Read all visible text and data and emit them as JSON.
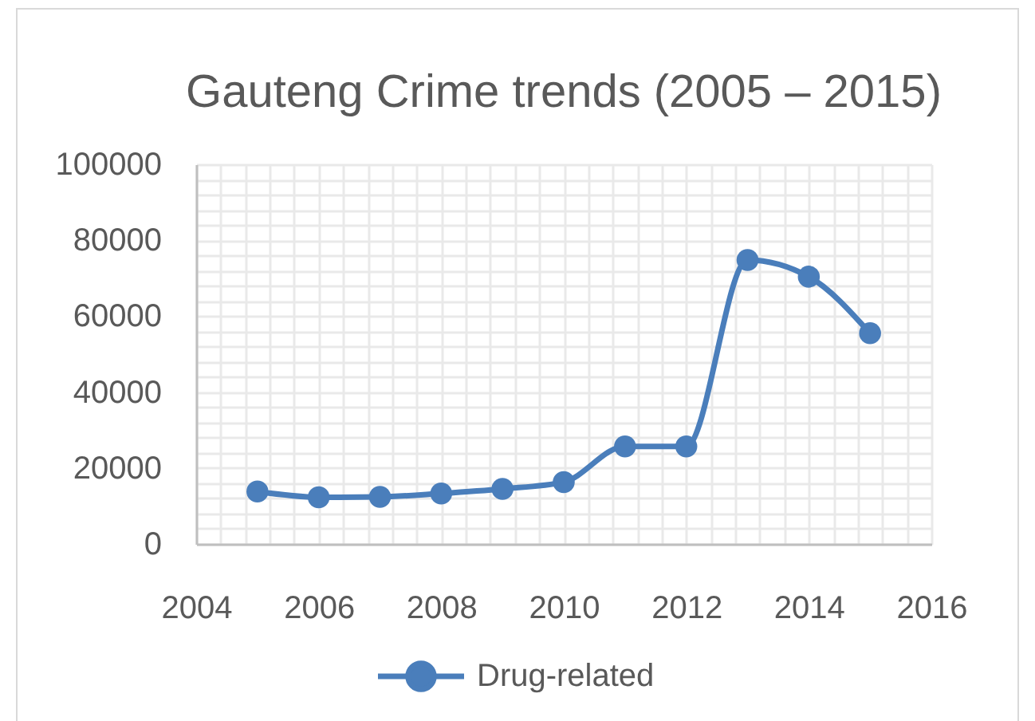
{
  "chart_data": {
    "type": "line",
    "title": "Gauteng Crime trends (2005 – 2015)",
    "x": [
      2005,
      2006,
      2007,
      2008,
      2009,
      2010,
      2011,
      2012,
      2013,
      2014,
      2015
    ],
    "series": [
      {
        "name": "Drug-related",
        "color": "#4a7ebb",
        "values": [
          13800,
          12300,
          12400,
          13300,
          14500,
          16300,
          25700,
          25700,
          74800,
          70400,
          55500
        ]
      }
    ],
    "xlim": [
      2004,
      2016
    ],
    "xticks": [
      2004,
      {
        "value": 2004.4,
        "label": null
      },
      {
        "value": 2004.8,
        "label": null
      },
      {
        "value": 2005.2,
        "label": null
      },
      {
        "value": 2005.6,
        "label": null
      },
      2006,
      {
        "value": 2006.4,
        "label": null
      },
      {
        "value": 2006.8,
        "label": null
      },
      {
        "value": 2007.2,
        "label": null
      },
      {
        "value": 2007.6,
        "label": null
      },
      2008,
      {
        "value": 2008.4,
        "label": null
      },
      {
        "value": 2008.8,
        "label": null
      },
      {
        "value": 2009.2,
        "label": null
      },
      {
        "value": 2009.6,
        "label": null
      },
      2010,
      {
        "value": 2010.4,
        "label": null
      },
      {
        "value": 2010.8,
        "label": null
      },
      {
        "value": 2011.2,
        "label": null
      },
      {
        "value": 2011.6,
        "label": null
      },
      2012,
      {
        "value": 2012.4,
        "label": null
      },
      {
        "value": 2012.8,
        "label": null
      },
      {
        "value": 2013.2,
        "label": null
      },
      {
        "value": 2013.6,
        "label": null
      },
      2014,
      {
        "value": 2014.4,
        "label": null
      },
      {
        "value": 2014.8,
        "label": null
      },
      {
        "value": 2015.2,
        "label": null
      },
      {
        "value": 2015.6,
        "label": null
      },
      2016
    ],
    "ylim": [
      0,
      100000
    ],
    "yticks": [
      0,
      {
        "value": 4000,
        "label": null
      },
      {
        "value": 8000,
        "label": null
      },
      {
        "value": 12000,
        "label": null
      },
      {
        "value": 16000,
        "label": null
      },
      20000,
      {
        "value": 24000,
        "label": null
      },
      {
        "value": 28000,
        "label": null
      },
      {
        "value": 32000,
        "label": null
      },
      {
        "value": 36000,
        "label": null
      },
      40000,
      {
        "value": 44000,
        "label": null
      },
      {
        "value": 48000,
        "label": null
      },
      {
        "value": 52000,
        "label": null
      },
      {
        "value": 56000,
        "label": null
      },
      60000,
      {
        "value": 64000,
        "label": null
      },
      {
        "value": 68000,
        "label": null
      },
      {
        "value": 72000,
        "label": null
      },
      {
        "value": 76000,
        "label": null
      },
      80000,
      {
        "value": 84000,
        "label": null
      },
      {
        "value": 88000,
        "label": null
      },
      {
        "value": 92000,
        "label": null
      },
      {
        "value": 96000,
        "label": null
      },
      100000
    ],
    "grid": true,
    "legend": "bottom",
    "marker": "circle",
    "line_style": "solid"
  }
}
